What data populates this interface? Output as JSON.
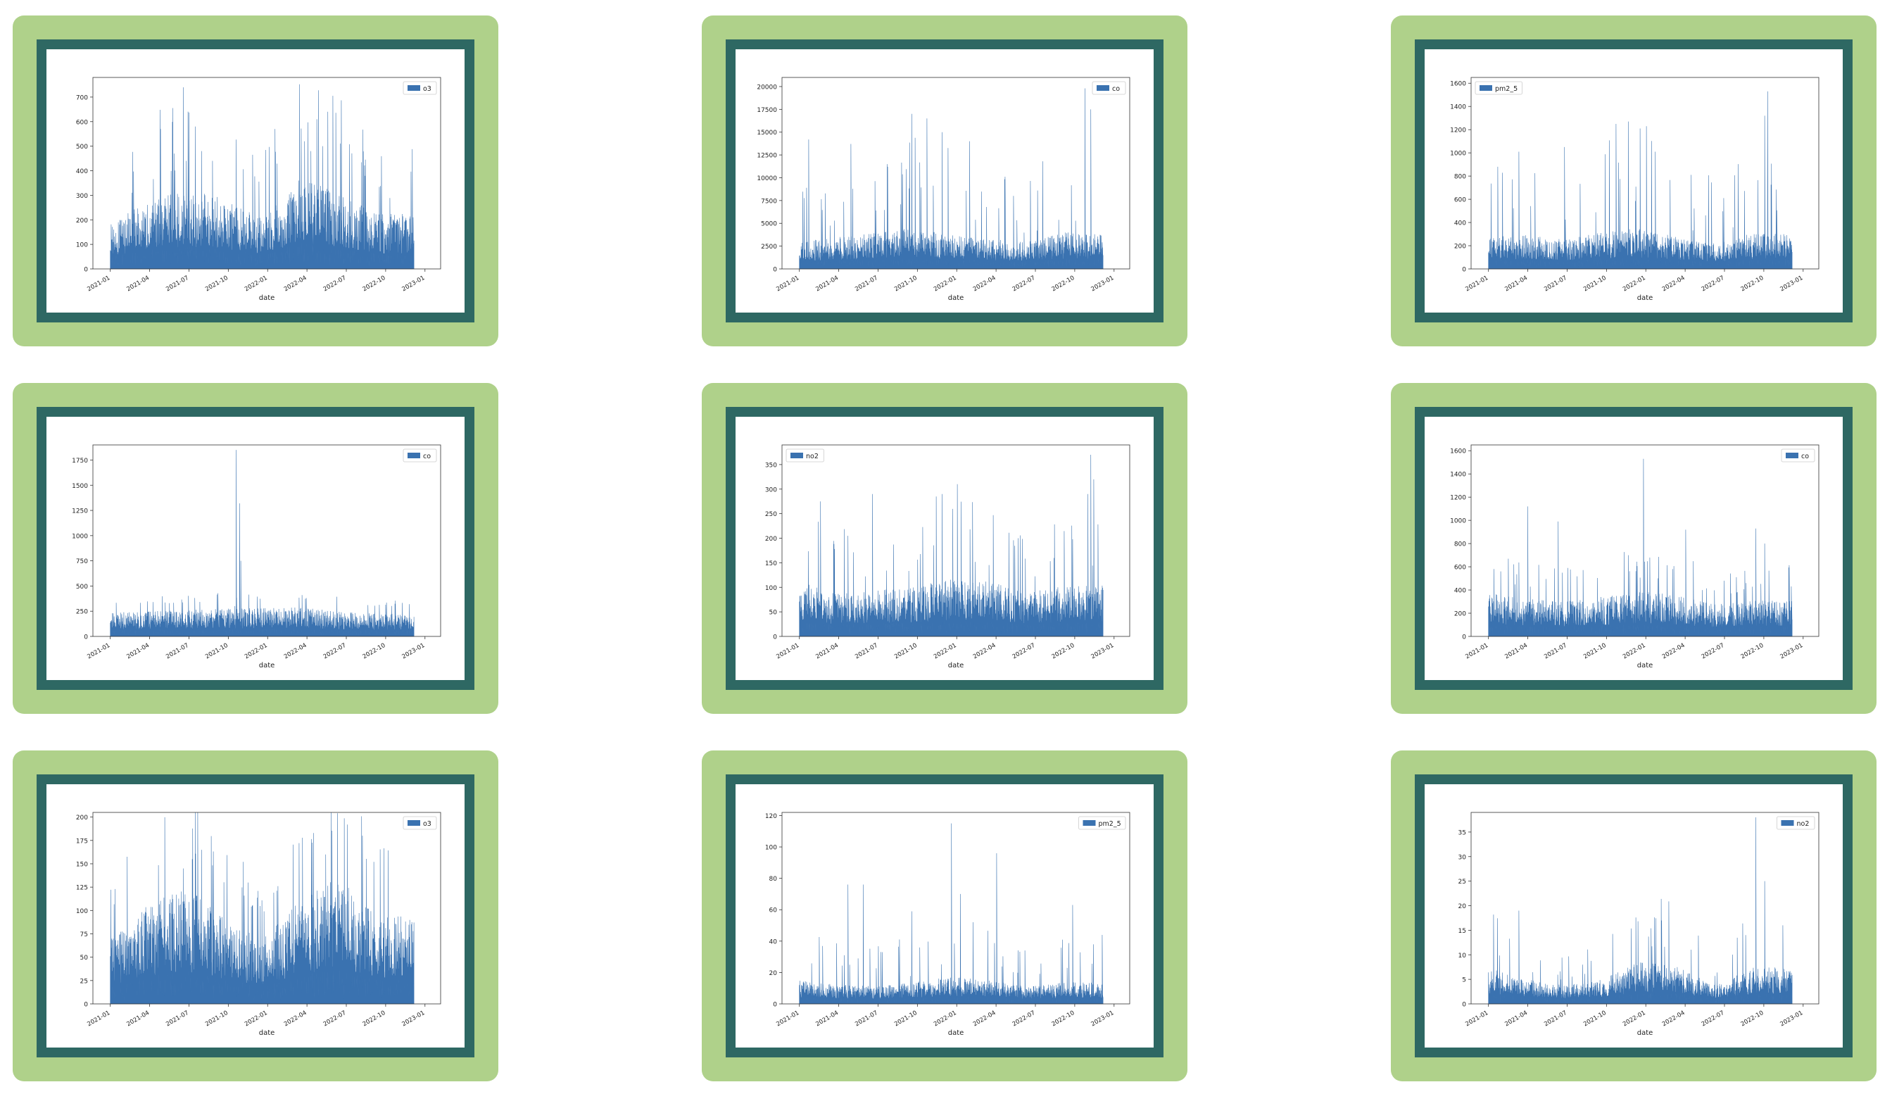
{
  "colors": {
    "card_bg": "#afd18a",
    "frame": "#2e6863",
    "series": "#3a72b0"
  },
  "chart_data": [
    {
      "type": "area",
      "legend": "o3",
      "legend_pos": "top-right",
      "xlabel": "date",
      "xticks": [
        "2021-01",
        "2021-04",
        "2021-07",
        "2021-10",
        "2022-01",
        "2022-04",
        "2022-07",
        "2022-10",
        "2023-01"
      ],
      "ylim": [
        0,
        780
      ],
      "yticks": [
        0,
        100,
        200,
        300,
        400,
        500,
        600,
        700
      ],
      "profile": {
        "base": [
          150,
          220,
          260,
          230,
          170,
          300,
          250,
          180
        ],
        "noise": 0.5,
        "spikes": [
          [
            0.24,
            740
          ],
          [
            0.28,
            580
          ],
          [
            0.21,
            470
          ],
          [
            0.25,
            440
          ],
          [
            0.64,
            520
          ],
          [
            0.7,
            500
          ],
          [
            0.66,
            480
          ]
        ],
        "seed": 1
      }
    },
    {
      "type": "area",
      "legend": "co",
      "legend_pos": "top-right",
      "xlabel": "date",
      "xticks": [
        "2021-01",
        "2021-04",
        "2021-07",
        "2021-10",
        "2022-01",
        "2022-04",
        "2022-07",
        "2022-10",
        "2023-01"
      ],
      "ylim": [
        0,
        21000
      ],
      "yticks": [
        0,
        2500,
        5000,
        7500,
        10000,
        12500,
        15000,
        17500,
        20000
      ],
      "profile": {
        "base": [
          2500,
          2800,
          3200,
          3600,
          3000,
          2600,
          2400,
          3200
        ],
        "noise": 1.1,
        "spikes": [
          [
            0.03,
            14200
          ],
          [
            0.17,
            13700
          ],
          [
            0.37,
            17000
          ],
          [
            0.42,
            16500
          ],
          [
            0.47,
            15000
          ],
          [
            0.56,
            14000
          ],
          [
            0.94,
            19800
          ],
          [
            0.96,
            17500
          ],
          [
            0.29,
            11200
          ]
        ],
        "seed": 2
      }
    },
    {
      "type": "area",
      "legend": "pm2_5",
      "legend_pos": "top-left",
      "xlabel": "date",
      "xticks": [
        "2021-01",
        "2021-04",
        "2021-07",
        "2021-10",
        "2022-01",
        "2022-04",
        "2022-07",
        "2022-10",
        "2023-01"
      ],
      "ylim": [
        0,
        1650
      ],
      "yticks": [
        0,
        200,
        400,
        600,
        800,
        1000,
        1200,
        1400,
        1600
      ],
      "profile": {
        "base": [
          220,
          240,
          200,
          260,
          280,
          220,
          180,
          250
        ],
        "noise": 1.1,
        "spikes": [
          [
            0.1,
            1010
          ],
          [
            0.25,
            1050
          ],
          [
            0.42,
            1250
          ],
          [
            0.46,
            1270
          ],
          [
            0.52,
            1230
          ],
          [
            0.55,
            1010
          ],
          [
            0.92,
            1530
          ],
          [
            0.91,
            1320
          ],
          [
            0.03,
            880
          ]
        ],
        "seed": 3
      }
    },
    {
      "type": "area",
      "legend": "co",
      "legend_pos": "top-right",
      "xlabel": "date",
      "xticks": [
        "2021-01",
        "2021-04",
        "2021-07",
        "2021-10",
        "2022-01",
        "2022-04",
        "2022-07",
        "2022-10",
        "2023-01"
      ],
      "ylim": [
        0,
        1900
      ],
      "yticks": [
        0,
        250,
        500,
        750,
        1000,
        1250,
        1500,
        1750
      ],
      "profile": {
        "base": [
          190,
          200,
          210,
          220,
          230,
          230,
          200,
          180
        ],
        "noise": 0.15,
        "spikes": [
          [
            0.415,
            1850
          ],
          [
            0.425,
            1320
          ],
          [
            0.43,
            750
          ],
          [
            0.41,
            300
          ]
        ],
        "seed": 4
      }
    },
    {
      "type": "area",
      "legend": "no2",
      "legend_pos": "top-left",
      "xlabel": "date",
      "xticks": [
        "2021-01",
        "2021-04",
        "2021-07",
        "2021-10",
        "2022-01",
        "2022-04",
        "2022-07",
        "2022-10",
        "2023-01"
      ],
      "ylim": [
        0,
        390
      ],
      "yticks": [
        0,
        50,
        100,
        150,
        200,
        250,
        300,
        350
      ],
      "profile": {
        "base": [
          90,
          70,
          75,
          80,
          95,
          90,
          70,
          85
        ],
        "noise": 0.6,
        "spikes": [
          [
            0.07,
            275
          ],
          [
            0.24,
            290
          ],
          [
            0.47,
            290
          ],
          [
            0.52,
            310
          ],
          [
            0.45,
            285
          ],
          [
            0.96,
            370
          ],
          [
            0.95,
            290
          ],
          [
            0.97,
            320
          ]
        ],
        "seed": 5
      }
    },
    {
      "type": "area",
      "legend": "co",
      "legend_pos": "top-right",
      "xlabel": "date",
      "xticks": [
        "2021-01",
        "2021-04",
        "2021-07",
        "2021-10",
        "2022-01",
        "2022-04",
        "2022-07",
        "2022-10",
        "2023-01"
      ],
      "ylim": [
        0,
        1650
      ],
      "yticks": [
        0,
        200,
        400,
        600,
        800,
        1000,
        1200,
        1400,
        1600
      ],
      "profile": {
        "base": [
          300,
          260,
          240,
          280,
          310,
          290,
          220,
          250
        ],
        "noise": 0.35,
        "spikes": [
          [
            0.13,
            1120
          ],
          [
            0.23,
            990
          ],
          [
            0.51,
            1530
          ],
          [
            0.46,
            700
          ],
          [
            0.65,
            920
          ],
          [
            0.88,
            930
          ],
          [
            0.91,
            800
          ],
          [
            0.04,
            560
          ]
        ],
        "seed": 6
      }
    },
    {
      "type": "area",
      "legend": "o3",
      "legend_pos": "top-right",
      "xlabel": "date",
      "xticks": [
        "2021-01",
        "2021-04",
        "2021-07",
        "2021-10",
        "2022-01",
        "2022-04",
        "2022-07",
        "2022-10",
        "2023-01"
      ],
      "ylim": [
        0,
        205
      ],
      "yticks": [
        0,
        25,
        50,
        75,
        100,
        125,
        150,
        175,
        200
      ],
      "profile": {
        "base": [
          55,
          85,
          100,
          75,
          55,
          90,
          110,
          75
        ],
        "noise": 0.3,
        "spikes": [
          [
            0.3,
            165
          ],
          [
            0.27,
            155
          ],
          [
            0.24,
            145
          ],
          [
            0.78,
            192
          ],
          [
            0.83,
            180
          ],
          [
            0.71,
            160
          ]
        ],
        "seed": 7
      }
    },
    {
      "type": "area",
      "legend": "pm2_5",
      "legend_pos": "top-right",
      "xlabel": "date",
      "xticks": [
        "2021-01",
        "2021-04",
        "2021-07",
        "2021-10",
        "2022-01",
        "2022-04",
        "2022-07",
        "2022-10",
        "2023-01"
      ],
      "ylim": [
        0,
        122
      ],
      "yticks": [
        0,
        20,
        40,
        60,
        80,
        100,
        120
      ],
      "profile": {
        "base": [
          12,
          10,
          9,
          11,
          14,
          12,
          9,
          11
        ],
        "noise": 1.0,
        "spikes": [
          [
            0.5,
            115
          ],
          [
            0.65,
            96
          ],
          [
            0.21,
            76
          ],
          [
            0.16,
            76
          ],
          [
            0.37,
            59
          ],
          [
            0.9,
            63
          ],
          [
            0.53,
            70
          ]
        ],
        "seed": 8
      }
    },
    {
      "type": "area",
      "legend": "no2",
      "legend_pos": "top-right",
      "xlabel": "date",
      "xticks": [
        "2021-01",
        "2021-04",
        "2021-07",
        "2021-10",
        "2022-01",
        "2022-04",
        "2022-07",
        "2022-10",
        "2023-01"
      ],
      "ylim": [
        0,
        39
      ],
      "yticks": [
        0,
        5,
        10,
        15,
        20,
        25,
        30,
        35
      ],
      "profile": {
        "base": [
          6,
          4,
          3,
          4,
          7,
          6,
          3,
          6
        ],
        "noise": 0.7,
        "spikes": [
          [
            0.88,
            38
          ],
          [
            0.91,
            25
          ],
          [
            0.1,
            19
          ],
          [
            0.57,
            17
          ],
          [
            0.97,
            16
          ]
        ],
        "seed": 9
      }
    }
  ]
}
